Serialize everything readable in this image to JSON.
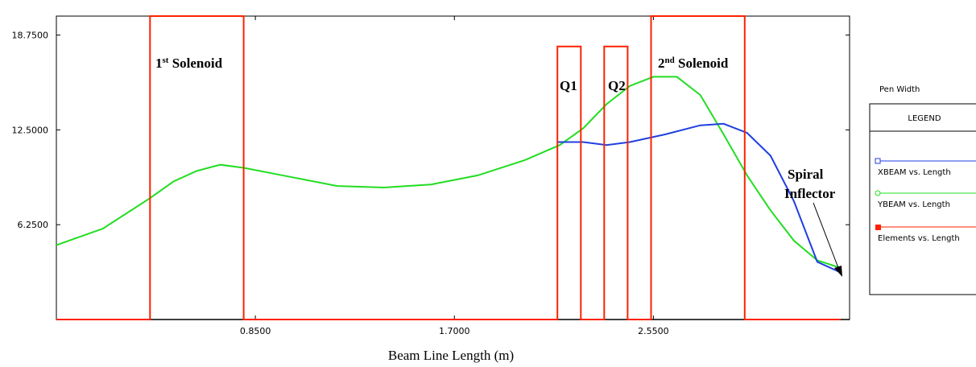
{
  "chart_data": {
    "type": "line",
    "xlabel": "Beam Line Length (m)",
    "ylabel": "",
    "xlim": [
      0,
      3.35
    ],
    "ylim": [
      0,
      20
    ],
    "x_ticks": [
      0.85,
      1.7,
      2.55
    ],
    "x_tick_labels": [
      "0.8500",
      "1.7000",
      "2.5500"
    ],
    "y_ticks": [
      6.25,
      12.5,
      18.75
    ],
    "y_tick_labels": [
      "6.2500",
      "12.5000",
      "18.7500"
    ],
    "series": [
      {
        "name": "XBEAM vs. Length",
        "color": "#1f3fe0",
        "x": [
          2.14,
          2.25,
          2.35,
          2.45,
          2.6,
          2.75,
          2.85,
          2.95,
          3.05,
          3.15,
          3.25,
          3.35
        ],
        "y": [
          11.7,
          11.7,
          11.5,
          11.7,
          12.2,
          12.8,
          12.9,
          12.3,
          10.8,
          7.8,
          3.8,
          3.1
        ]
      },
      {
        "name": "YBEAM vs. Length",
        "color": "#22dd22",
        "x": [
          0,
          0.2,
          0.4,
          0.5,
          0.6,
          0.7,
          0.8,
          1.0,
          1.2,
          1.4,
          1.6,
          1.8,
          2.0,
          2.15,
          2.25,
          2.35,
          2.45,
          2.55,
          2.65,
          2.75,
          2.85,
          2.95,
          3.05,
          3.15,
          3.25,
          3.35
        ],
        "y": [
          4.9,
          6.0,
          8.0,
          9.1,
          9.8,
          10.2,
          10.0,
          9.4,
          8.8,
          8.7,
          8.9,
          9.5,
          10.5,
          11.5,
          12.6,
          14.2,
          15.4,
          16.0,
          16.0,
          14.8,
          12.2,
          9.5,
          7.2,
          5.2,
          3.9,
          3.4
        ]
      },
      {
        "name": "Elements vs. Length",
        "color": "#ff2200",
        "x": [
          0,
          0.4,
          0.4,
          0.8,
          0.8,
          2.14,
          2.14,
          2.24,
          2.24,
          2.34,
          2.34,
          2.44,
          2.44,
          2.54,
          2.54,
          2.94,
          2.94,
          3.35
        ],
        "y": [
          0,
          0,
          20,
          20,
          0,
          0,
          18,
          18,
          0,
          0,
          18,
          18,
          0,
          0,
          20,
          20,
          0,
          0
        ]
      }
    ],
    "annotations": {
      "solenoid1_main": "1",
      "solenoid1_sup": "st",
      "solenoid1_rest": " Solenoid",
      "solenoid2_main": "2",
      "solenoid2_sup": "nd",
      "solenoid2_rest": " Solenoid",
      "q1": "Q1",
      "q2": "Q2",
      "spiral_line1": "Spiral",
      "spiral_line2": "Inflector"
    },
    "legend": {
      "pen_width_label": "Pen Width",
      "title": "LEGEND",
      "placement": "right"
    },
    "grid": false
  }
}
